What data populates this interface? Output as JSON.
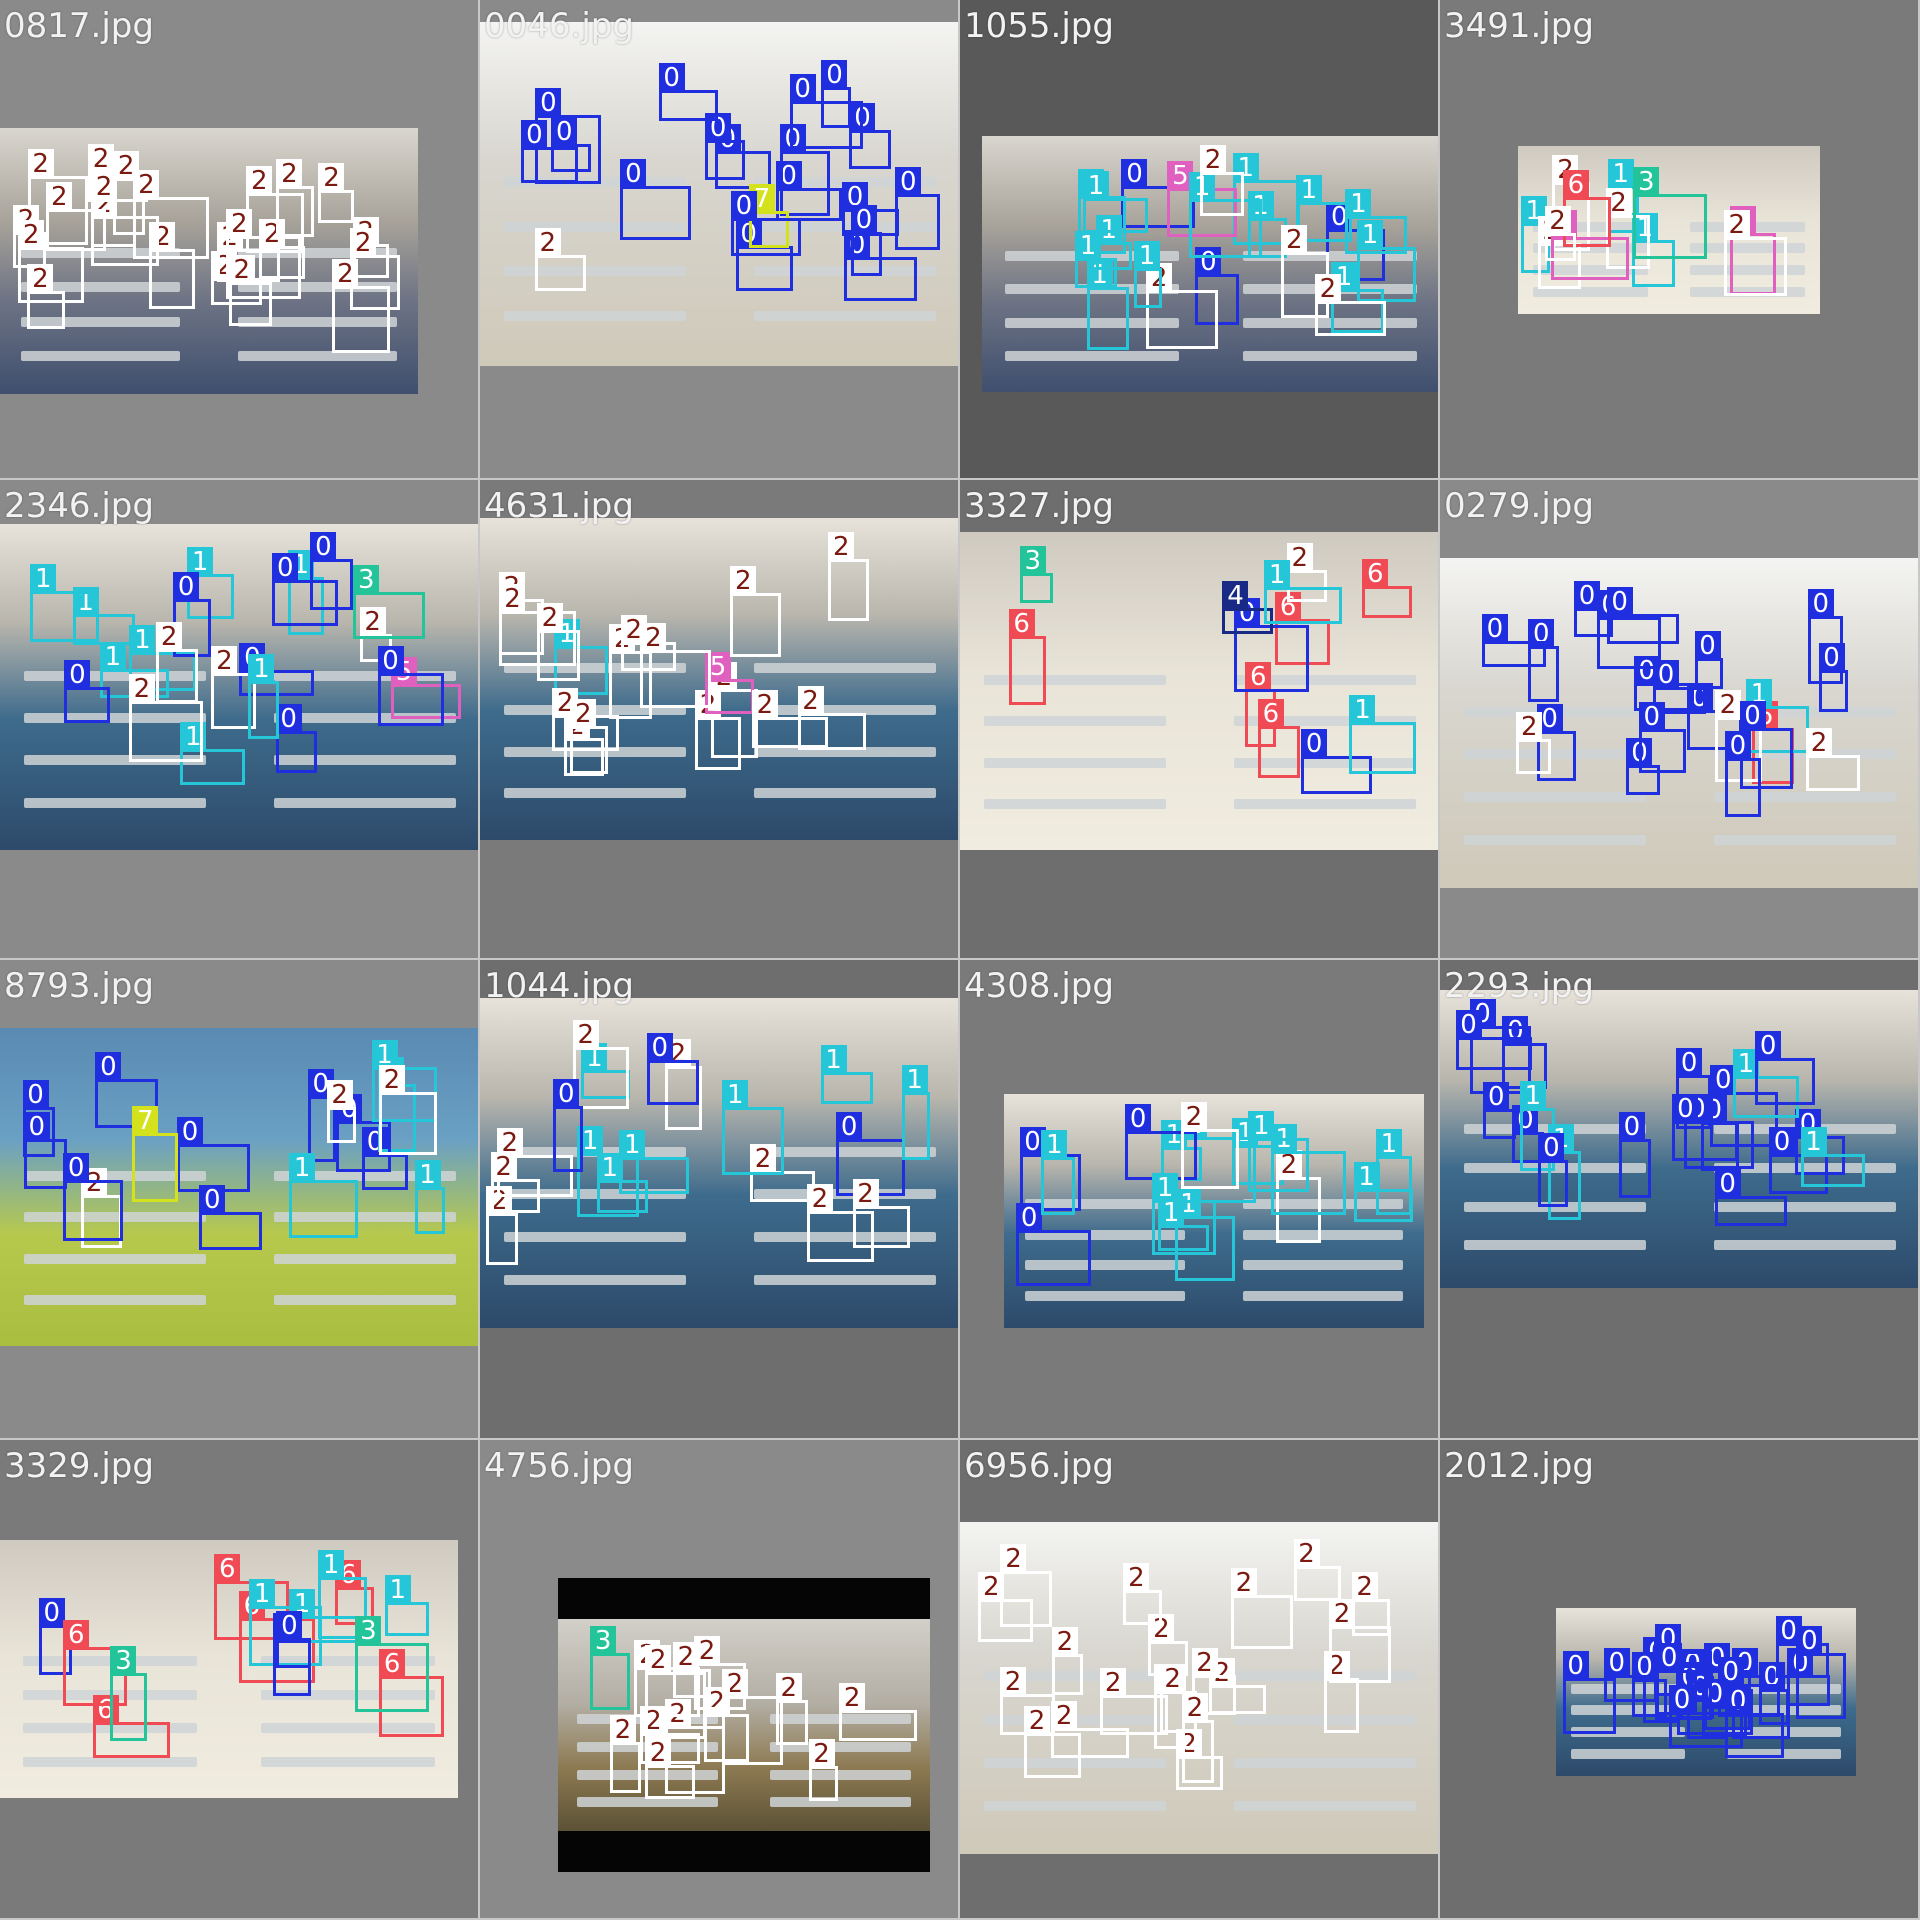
{
  "palette": {
    "0": {
      "box": "#1f2fe0",
      "tag": "#1f2fe0",
      "text": "#ffffff"
    },
    "1": {
      "box": "#25c6d8",
      "tag": "#25c6d8",
      "text": "#ffffff"
    },
    "2": {
      "box": "#ffffff",
      "tag": "#ffffff",
      "text": "#7a1a10"
    },
    "3": {
      "box": "#24c49a",
      "tag": "#24c49a",
      "text": "#ffffff"
    },
    "4": {
      "box": "#182a86",
      "tag": "#182a86",
      "text": "#ffffff"
    },
    "5": {
      "box": "#e060c0",
      "tag": "#e060c0",
      "text": "#ffffff"
    },
    "6": {
      "box": "#f04a55",
      "tag": "#f04a55",
      "text": "#ffffff"
    },
    "7": {
      "box": "#d4e21e",
      "tag": "#d4e21e",
      "text": "#ffffff"
    }
  },
  "tiles": [
    {
      "filename": "0817.jpg",
      "bg": "#8a8a8a",
      "style": "default",
      "labels": [
        "2",
        "2",
        "2",
        "2",
        "2",
        "2",
        "2",
        "2",
        "2",
        "2",
        "2",
        "2",
        "2",
        "2",
        "2",
        "2",
        "2",
        "2",
        "2",
        "2",
        "2",
        "2"
      ]
    },
    {
      "filename": "0046.jpg",
      "bg": "#8a8a8a",
      "style": "bright",
      "labels": [
        "0",
        "0",
        "0",
        "0",
        "0",
        "0",
        "0",
        "2",
        "0",
        "0",
        "0",
        "0",
        "0",
        "0",
        "0",
        "0",
        "0",
        "7",
        "0",
        "0"
      ]
    },
    {
      "filename": "1055.jpg",
      "bg": "#595959",
      "style": "default",
      "labels": [
        "0",
        "0",
        "1",
        "1",
        "1",
        "0",
        "1",
        "1",
        "2",
        "1",
        "1",
        "5",
        "2",
        "1",
        "1",
        "2",
        "1",
        "1",
        "2",
        "1",
        "1"
      ]
    },
    {
      "filename": "3491.jpg",
      "bg": "#7a7a7a",
      "style": "tile-floor",
      "labels": [
        "5",
        "1",
        "1",
        "1",
        "2",
        "2",
        "2",
        "5",
        "3",
        "2",
        "6",
        "2"
      ]
    },
    {
      "filename": "2346.jpg",
      "bg": "#8a8a8a",
      "style": "blue-floor",
      "labels": [
        "2",
        "1",
        "1",
        "1",
        "1",
        "0",
        "1",
        "0",
        "0",
        "5",
        "2",
        "0",
        "1",
        "0",
        "3",
        "1",
        "1",
        "0",
        "2",
        "0",
        "2"
      ]
    },
    {
      "filename": "4631.jpg",
      "bg": "#7a7a7a",
      "style": "blue-floor",
      "labels": [
        "2",
        "2",
        "2",
        "2",
        "2",
        "2",
        "5",
        "1",
        "2",
        "2",
        "2",
        "2",
        "2",
        "2",
        "2",
        "2",
        "2"
      ]
    },
    {
      "filename": "3327.jpg",
      "bg": "#6e6e6e",
      "style": "tile-floor",
      "labels": [
        "6",
        "6",
        "6",
        "0",
        "0",
        "2",
        "4",
        "6",
        "1",
        "3",
        "6",
        "1"
      ]
    },
    {
      "filename": "0279.jpg",
      "bg": "#8a8a8a",
      "style": "bright",
      "labels": [
        "6",
        "0",
        "1",
        "2",
        "2",
        "0",
        "0",
        "0",
        "0",
        "0",
        "0",
        "0",
        "0",
        "0",
        "0",
        "0",
        "0",
        "2",
        "0",
        "0",
        "0"
      ]
    },
    {
      "filename": "8793.jpg",
      "bg": "#8a8a8a",
      "style": "green-wall",
      "labels": [
        "0",
        "0",
        "0",
        "0",
        "0",
        "1",
        "0",
        "1",
        "1",
        "7",
        "2",
        "2",
        "0",
        "1",
        "2",
        "0",
        "0"
      ]
    },
    {
      "filename": "1044.jpg",
      "bg": "#6e6e6e",
      "style": "blue-floor",
      "labels": [
        "2",
        "0",
        "1",
        "1",
        "1",
        "2",
        "2",
        "2",
        "2",
        "0",
        "2",
        "1",
        "1",
        "1",
        "0",
        "1",
        "2",
        "2"
      ]
    },
    {
      "filename": "4308.jpg",
      "bg": "#7a7a7a",
      "style": "blue-floor",
      "labels": [
        "1",
        "1",
        "0",
        "0",
        "1",
        "1",
        "1",
        "2",
        "1",
        "1",
        "0",
        "1",
        "2",
        "1",
        "1",
        "1"
      ]
    },
    {
      "filename": "2293.jpg",
      "bg": "#6e6e6e",
      "style": "blue-floor",
      "labels": [
        "0",
        "0",
        "0",
        "0",
        "0",
        "0",
        "0",
        "1",
        "1",
        "0",
        "0",
        "0",
        "1",
        "0",
        "0",
        "0",
        "0",
        "1",
        "0",
        "0"
      ]
    },
    {
      "filename": "3329.jpg",
      "bg": "#7a7a7a",
      "style": "tile-floor",
      "labels": [
        "6",
        "6",
        "6",
        "6",
        "1",
        "0",
        "6",
        "1",
        "3",
        "1",
        "6",
        "0",
        "3",
        "0",
        "1"
      ]
    },
    {
      "filename": "4756.jpg",
      "bg": "#8a8a8a",
      "style": "dark-frame",
      "labels": [
        "2",
        "2",
        "2",
        "2",
        "2",
        "2",
        "2",
        "2",
        "2",
        "2",
        "2",
        "2",
        "2",
        "3"
      ]
    },
    {
      "filename": "6956.jpg",
      "bg": "#6e6e6e",
      "style": "bright",
      "labels": [
        "2",
        "2",
        "2",
        "2",
        "2",
        "2",
        "2",
        "2",
        "2",
        "2",
        "2",
        "2",
        "2",
        "2",
        "2",
        "2",
        "2",
        "2",
        "2",
        "2"
      ]
    },
    {
      "filename": "2012.jpg",
      "bg": "#6e6e6e",
      "style": "blue-floor",
      "labels": [
        "0",
        "0",
        "0",
        "0",
        "0",
        "0",
        "0",
        "0",
        "0",
        "0",
        "0",
        "0",
        "0",
        "0",
        "0",
        "0",
        "0",
        "0",
        "0",
        "0"
      ]
    }
  ]
}
